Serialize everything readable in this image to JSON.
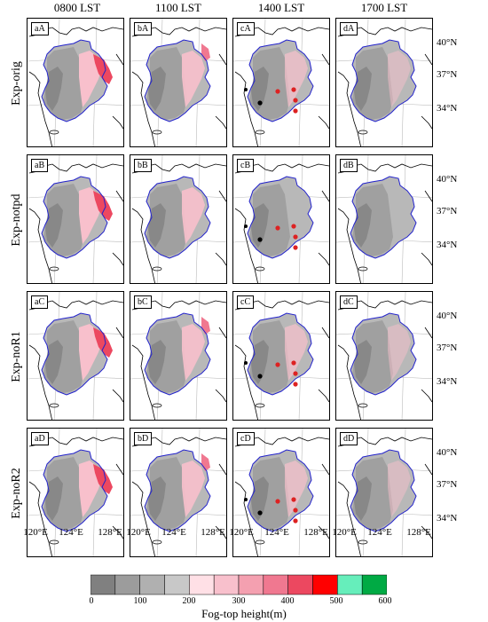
{
  "columns": [
    "0800 LST",
    "1100 LST",
    "1400 LST",
    "1700 LST"
  ],
  "rows": [
    "Exp-orig",
    "Exp-notpd",
    "Exp-noR1",
    "Exp-noR2"
  ],
  "panel_labels": [
    [
      "aA",
      "bA",
      "cA",
      "dA"
    ],
    [
      "aB",
      "bB",
      "cB",
      "dB"
    ],
    [
      "aC",
      "bC",
      "cC",
      "dC"
    ],
    [
      "aD",
      "bD",
      "cD",
      "dD"
    ]
  ],
  "lat_labels": [
    "40°N",
    "37°N",
    "34°N"
  ],
  "lon_labels": [
    "120°E",
    "124°E",
    "128°E"
  ],
  "colorbar": {
    "label": "Fog-top height(m)",
    "ticks": [
      "0",
      "100",
      "200",
      "300",
      "400",
      "500",
      "600"
    ],
    "colors": [
      "#808080",
      "#9c9c9c",
      "#b0b0b0",
      "#c8c8c8",
      "#ffe0e6",
      "#f8c0cc",
      "#f4a0b0",
      "#f07890",
      "#ec4860",
      "#ff0000",
      "#66eebb",
      "#00aa44"
    ]
  },
  "markers": {
    "black": "#000000",
    "red": "#dd2222"
  }
}
